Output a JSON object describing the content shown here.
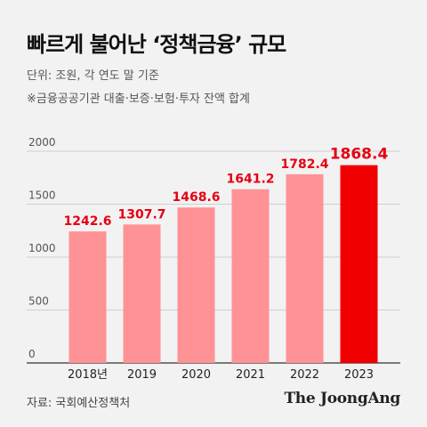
{
  "header": {
    "title": "빠르게 불어난 ‘정책금융’ 규모",
    "unit": "단위: 조원, 각 연도 말 기준",
    "note": "※금융공공기관 대출·보증·보험·투자 잔액 합계"
  },
  "footer": {
    "source": "자료: 국회예산정책처",
    "logo_text": "The JoongAng"
  },
  "chart_data": {
    "type": "bar",
    "title": "빠르게 불어난 ‘정책금융’ 규모",
    "categories": [
      "2018년",
      "2019",
      "2020",
      "2021",
      "2022",
      "2023"
    ],
    "values": [
      1242.6,
      1307.7,
      1468.6,
      1641.2,
      1782.4,
      1868.4
    ],
    "value_labels": [
      "1242.6",
      "1307.7",
      "1468.6",
      "1641.2",
      "1782.4",
      "1868.4"
    ],
    "yticks": [
      "0",
      "500",
      "1000",
      "1500",
      "2000"
    ],
    "ytick_values": [
      0,
      500,
      1000,
      1500,
      2000
    ],
    "ylim": [
      0,
      2000
    ],
    "grid": true,
    "colors": {
      "bar": "#ff9295",
      "highlight_bar": "#f00000",
      "label": "#e60012",
      "grid": "#cfcfcf",
      "axis": "#333333"
    },
    "highlight_index": 5
  }
}
